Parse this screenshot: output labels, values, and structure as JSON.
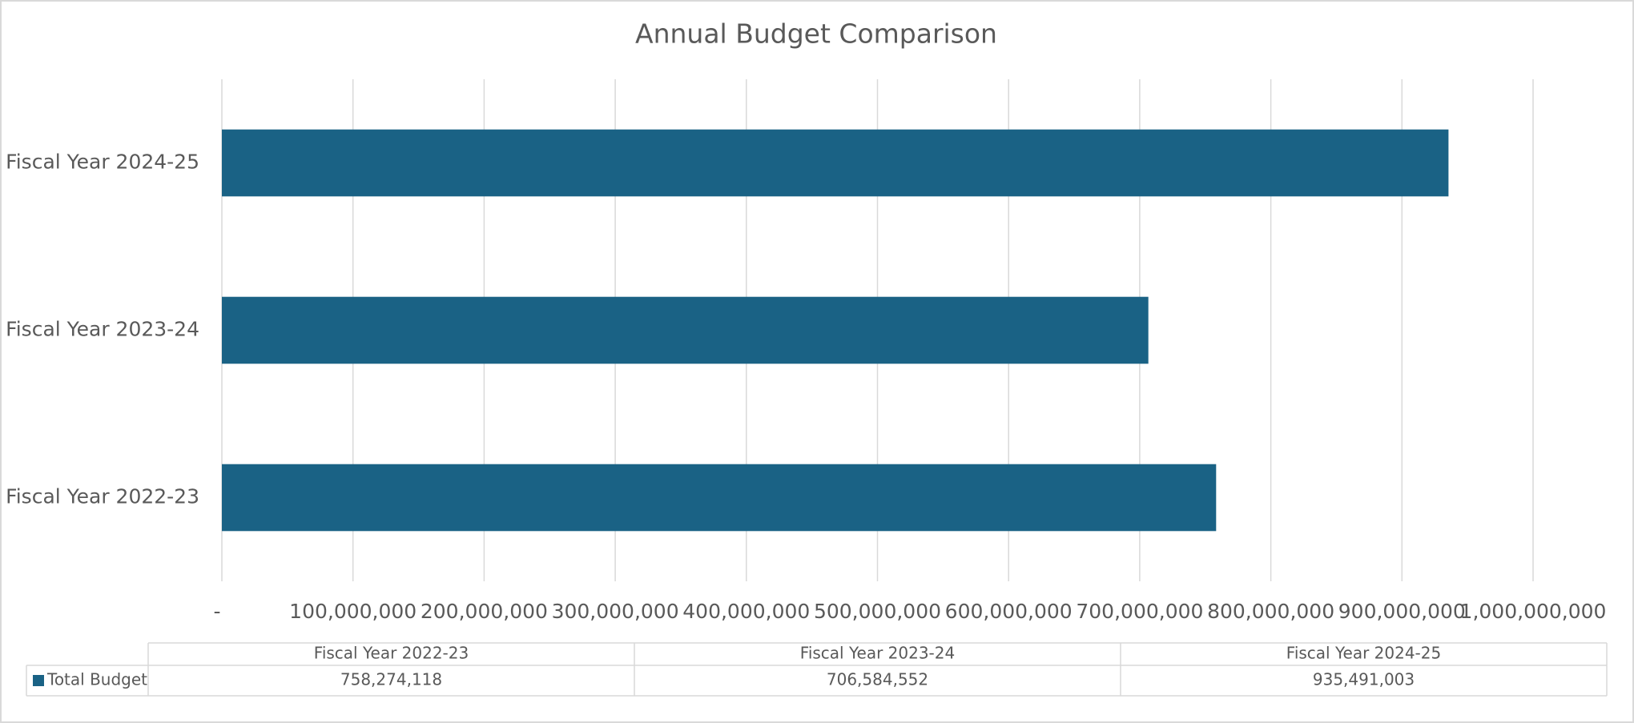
{
  "chart_data": {
    "type": "bar",
    "orientation": "horizontal",
    "title": "Annual Budget Comparison",
    "categories": [
      "Fiscal Year 2022-23",
      "Fiscal Year 2023-24",
      "Fiscal Year 2024-25"
    ],
    "series": [
      {
        "name": "Total Budget",
        "color": "#1a6285",
        "values": [
          758274118,
          706584552,
          935491003
        ],
        "value_labels": [
          "758,274,118",
          "706,584,552",
          "935,491,003"
        ]
      }
    ],
    "xlim": [
      0,
      1000000000
    ],
    "xticks": [
      {
        "value": 0,
        "label": "-"
      },
      {
        "value": 100000000,
        "label": "100,000,000"
      },
      {
        "value": 200000000,
        "label": "200,000,000"
      },
      {
        "value": 300000000,
        "label": "300,000,000"
      },
      {
        "value": 400000000,
        "label": "400,000,000"
      },
      {
        "value": 500000000,
        "label": "500,000,000"
      },
      {
        "value": 600000000,
        "label": "600,000,000"
      },
      {
        "value": 700000000,
        "label": "700,000,000"
      },
      {
        "value": 800000000,
        "label": "800,000,000"
      },
      {
        "value": 900000000,
        "label": "900,000,000"
      },
      {
        "value": 1000000000,
        "label": "1,000,000,000"
      }
    ],
    "grid": true,
    "data_table": true
  }
}
